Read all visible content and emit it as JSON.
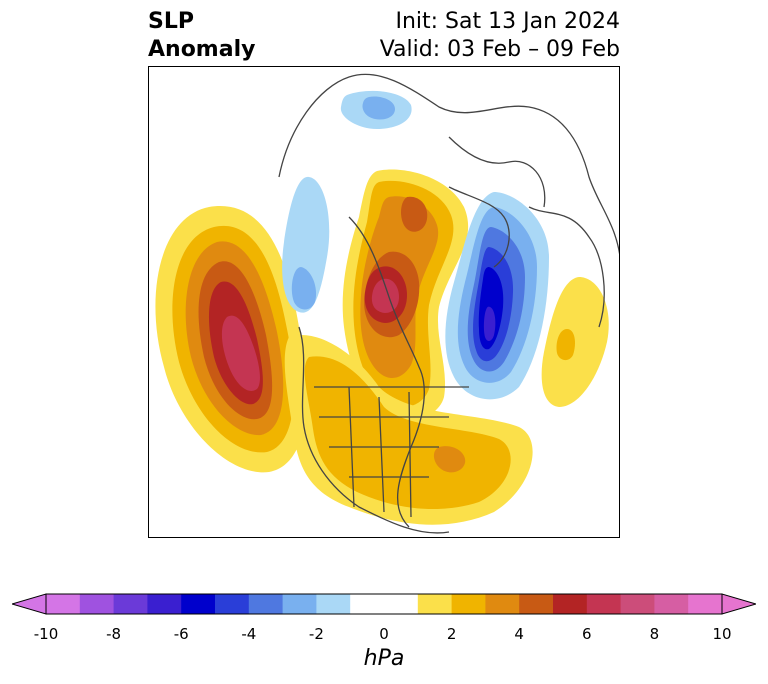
{
  "title": {
    "left_line1": "SLP",
    "left_line2": "Anomaly",
    "right_line1": "Init: Sat 13 Jan 2024",
    "right_line2": "Valid: 03 Feb – 09 Feb"
  },
  "colorbar": {
    "unit": "hPa",
    "ticks": [
      "-10",
      "-8",
      "-6",
      "-4",
      "-2",
      "0",
      "2",
      "4",
      "6",
      "8",
      "10"
    ],
    "range": [
      -10,
      10
    ],
    "levels_step": 1,
    "colors": [
      "#d475e6",
      "#9f52e0",
      "#6b3ad8",
      "#3a1fd0",
      "#0000cc",
      "#2a3ed8",
      "#4f78e0",
      "#79b0ef",
      "#aad8f6",
      "#ffffff",
      "#ffffff",
      "#fbe04a",
      "#f0b400",
      "#e08a10",
      "#c85a14",
      "#b32424",
      "#c43552",
      "#cc4d7a",
      "#d65ea3",
      "#e674cf"
    ]
  },
  "map": {
    "projection": "north-polar-stereographic",
    "variable": "sea-level-pressure-anomaly",
    "features": [
      {
        "name": "north-pacific-high-anomaly",
        "peak_hPa": 8
      },
      {
        "name": "canadian-arctic-high-anomaly",
        "peak_hPa": 8
      },
      {
        "name": "greenland-sea-low-anomaly",
        "peak_hPa": -7
      },
      {
        "name": "western-atlantic-high-anomaly",
        "peak_hPa": 4
      },
      {
        "name": "european-high-anomaly",
        "peak_hPa": 3
      },
      {
        "name": "scandinavian-siberian-low-anomaly",
        "peak_hPa": -3
      }
    ]
  }
}
